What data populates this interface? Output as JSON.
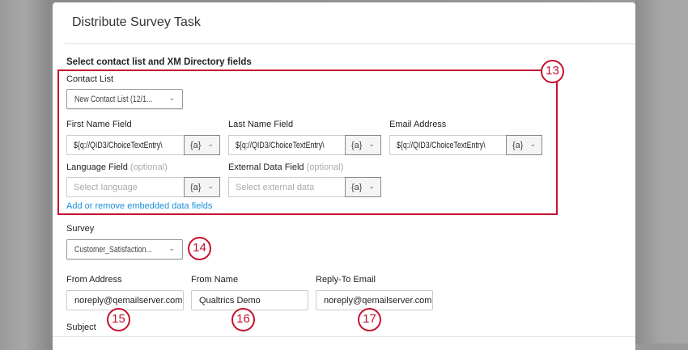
{
  "dialog": {
    "title": "Distribute Survey Task",
    "section_title": "Select contact list and XM Directory fields"
  },
  "contact_list": {
    "label": "Contact List",
    "value": "New Contact List (12/1..."
  },
  "fields": {
    "first_name": {
      "label": "First Name Field",
      "value": "${q://QID3/ChoiceTextEntry\\",
      "piped": "{a}"
    },
    "last_name": {
      "label": "Last Name Field",
      "value": "${q://QID3/ChoiceTextEntry\\",
      "piped": "{a}"
    },
    "email": {
      "label": "Email Address",
      "value": "${q://QID3/ChoiceTextEntry\\",
      "piped": "{a}"
    },
    "language": {
      "label": "Language Field",
      "optional": "(optional)",
      "placeholder": "Select language",
      "piped": "{a}"
    },
    "external": {
      "label": "External Data Field",
      "optional": "(optional)",
      "placeholder": "Select external data",
      "piped": "{a}"
    }
  },
  "embedded_link": "Add or remove embedded data fields",
  "survey": {
    "label": "Survey",
    "value": "Customer_Satisfaction..."
  },
  "from_address": {
    "label": "From Address",
    "value": "noreply@qemailserver.com"
  },
  "from_name": {
    "label": "From Name",
    "value": "Qualtrics Demo"
  },
  "reply_to": {
    "label": "Reply-To Email",
    "value": "noreply@qemailserver.com"
  },
  "subject": {
    "label": "Subject"
  },
  "callouts": [
    "13",
    "14",
    "15",
    "16",
    "17"
  ],
  "colors": {
    "callout": "#c4122f",
    "link": "#1d8fd8"
  },
  "icons": {
    "dropdown": "chevron-down-icon"
  }
}
